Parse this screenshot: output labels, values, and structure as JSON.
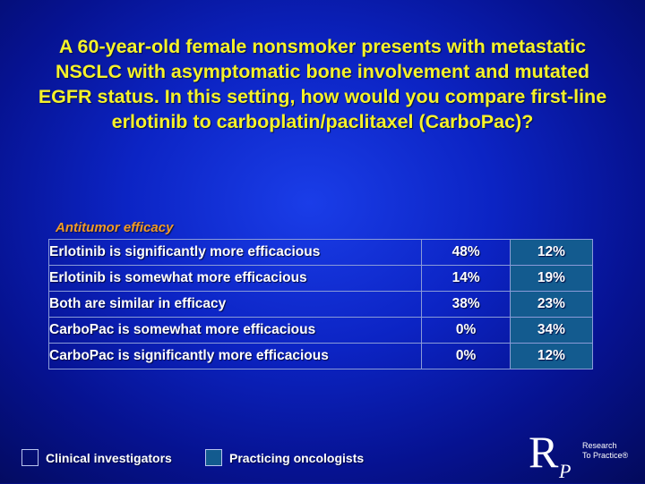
{
  "title": "A 60-year-old female nonsmoker presents with metastatic NSCLC with asymptomatic bone involvement and mutated EGFR status. In this setting, how would you compare first-line erlotinib to carboplatin/paclitaxel (CarboPac)?",
  "section_label": "Antitumor efficacy",
  "rows": [
    {
      "label": "Erlotinib is significantly more efficacious",
      "investigators": "48%",
      "oncologists": "12%"
    },
    {
      "label": "Erlotinib is somewhat more efficacious",
      "investigators": "14%",
      "oncologists": "19%"
    },
    {
      "label": "Both are similar in efficacy",
      "investigators": "38%",
      "oncologists": "23%"
    },
    {
      "label": "CarboPac is somewhat more efficacious",
      "investigators": "0%",
      "oncologists": "34%"
    },
    {
      "label": "CarboPac is significantly more efficacious",
      "investigators": "0%",
      "oncologists": "12%"
    }
  ],
  "legend": {
    "investigators": "Clinical investigators",
    "oncologists": "Practicing oncologists"
  },
  "logo": {
    "letters": "RP",
    "line1": "Research",
    "line2": "To Practice®"
  },
  "colors": {
    "title": "#f6f22a",
    "section_label": "#f29a28",
    "oncologists_fill": "#135b8f"
  }
}
